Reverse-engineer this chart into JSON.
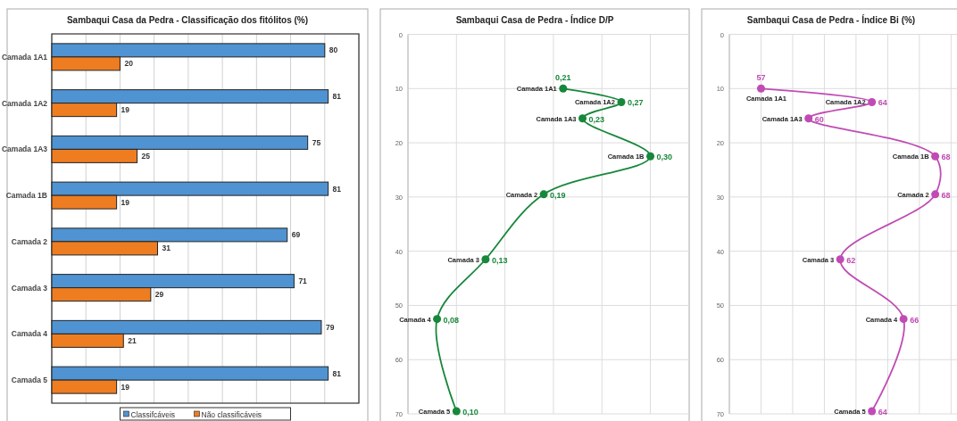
{
  "chart_data": [
    {
      "type": "bar",
      "orientation": "horizontal",
      "title": "Sambaqui Casa da Pedra - Classificação dos fitólitos (%)",
      "categories": [
        "Camada 1A1",
        "Camada 1A2",
        "Camada 1A3",
        "Camada 1B",
        "Camada 2",
        "Camada 3",
        "Camada 4",
        "Camada 5"
      ],
      "series": [
        {
          "name": "Classifcáveis",
          "color": "#4f93d2",
          "values": [
            80,
            81,
            75,
            81,
            69,
            71,
            79,
            81
          ]
        },
        {
          "name": "Não classificáveis",
          "color": "#ee7d22",
          "values": [
            20,
            19,
            25,
            19,
            31,
            29,
            21,
            19
          ]
        }
      ],
      "xlim": [
        0,
        90
      ],
      "xticks": [
        {
          "value": 0,
          "label": null
        },
        {
          "value": 10,
          "label": null
        },
        {
          "value": 20,
          "label": null
        },
        {
          "value": 30,
          "label": null
        },
        {
          "value": 40,
          "label": null
        },
        {
          "value": 50,
          "label": null
        },
        {
          "value": 60,
          "label": null
        },
        {
          "value": 70,
          "label": null
        },
        {
          "value": 80,
          "label": null
        },
        {
          "value": 90,
          "label": null
        }
      ],
      "tick_labels": "y",
      "grid": "x",
      "legend": "bottom",
      "data_labels": true
    },
    {
      "type": "line",
      "orientation": "horizontal",
      "title": "Sambaqui Casa de Pedra - Índice D/P",
      "series": [
        {
          "color": "#17873a",
          "x": [
            10,
            12.5,
            15.5,
            22.5,
            29.5,
            41.5,
            52.5,
            69.5
          ],
          "values": [
            0.21,
            0.27,
            0.23,
            0.3,
            0.19,
            0.13,
            0.08,
            0.1
          ],
          "value_labels": [
            "0,21",
            "0,27",
            "0,23",
            "0,30",
            "0,19",
            "0,13",
            "0,08",
            "0,10"
          ]
        }
      ],
      "annotations": [
        {
          "text": "Camada 1A1",
          "x": 0.21,
          "y": 10
        },
        {
          "text": "Camada 1A2",
          "x": 0.27,
          "y": 12.5
        },
        {
          "text": "Camada 1A3",
          "x": 0.23,
          "y": 15.5
        },
        {
          "text": "Camada 1B",
          "x": 0.3,
          "y": 22.5
        },
        {
          "text": "Camada 2",
          "x": 0.19,
          "y": 29.5
        },
        {
          "text": "Camada 3",
          "x": 0.13,
          "y": 41.5
        },
        {
          "text": "Camada 4",
          "x": 0.08,
          "y": 52.5
        },
        {
          "text": "Camada 5",
          "x": 0.1,
          "y": 69.5
        }
      ],
      "xlim": [
        0.05,
        0.34
      ],
      "xticks": [
        {
          "value": 0.05,
          "label": null
        },
        {
          "value": 0.1,
          "label": null
        },
        {
          "value": 0.15,
          "label": null
        },
        {
          "value": 0.2,
          "label": null
        },
        {
          "value": 0.25,
          "label": null
        },
        {
          "value": 0.3,
          "label": null
        }
      ],
      "ylim": [
        70,
        0
      ],
      "yticks": [
        0,
        10,
        20,
        30,
        40,
        50,
        60,
        70
      ],
      "tick_labels": "y",
      "grid": true,
      "marker": "circle"
    },
    {
      "type": "line",
      "orientation": "horizontal",
      "title": "Sambaqui Casa de Pedra - Índice Bi (%)",
      "series": [
        {
          "color": "#c04bb4",
          "x": [
            10,
            12.5,
            15.5,
            22.5,
            29.5,
            41.5,
            52.5,
            69.5
          ],
          "values": [
            57,
            64,
            60,
            68,
            68,
            62,
            66,
            64
          ],
          "value_labels": [
            "57",
            "64",
            "60",
            "68",
            "68",
            "62",
            "66",
            "64"
          ]
        }
      ],
      "annotations": [
        {
          "text": "Camada 1A1",
          "x": 57,
          "y": 10
        },
        {
          "text": "Camada 1A2",
          "x": 64,
          "y": 12.5
        },
        {
          "text": "Camada 1A3",
          "x": 60,
          "y": 15.5
        },
        {
          "text": "Camada 1B",
          "x": 68,
          "y": 22.5
        },
        {
          "text": "Camada 2",
          "x": 68,
          "y": 29.5
        },
        {
          "text": "Camada 3",
          "x": 62,
          "y": 41.5
        },
        {
          "text": "Camada 4",
          "x": 66,
          "y": 52.5
        },
        {
          "text": "Camada 5",
          "x": 64,
          "y": 69.5
        }
      ],
      "xlim": [
        55,
        69.6
      ],
      "xticks": [
        {
          "value": 55,
          "label": null
        },
        {
          "value": 57,
          "label": null
        },
        {
          "value": 59,
          "label": null
        },
        {
          "value": 61,
          "label": null
        },
        {
          "value": 63,
          "label": null
        },
        {
          "value": 65,
          "label": null
        },
        {
          "value": 67,
          "label": null
        },
        {
          "value": 69,
          "label": null
        }
      ],
      "ylim": [
        70,
        0
      ],
      "yticks": [
        0,
        10,
        20,
        30,
        40,
        50,
        60,
        70
      ],
      "tick_labels": "y",
      "grid": true,
      "marker": "circle"
    }
  ]
}
